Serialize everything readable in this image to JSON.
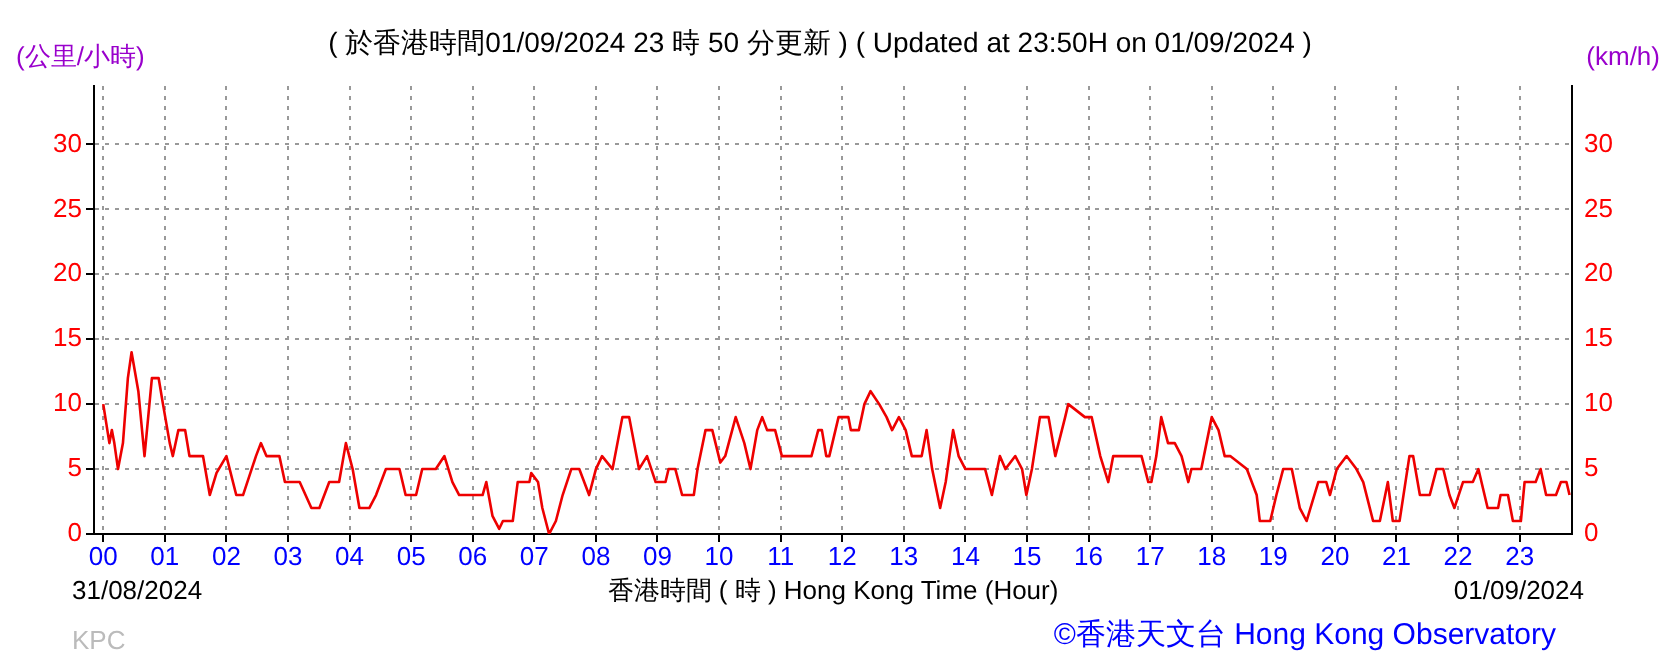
{
  "chart_data": {
    "type": "line",
    "title": "( 於香港時間01/09/2024 23 時 50 分更新 ) ( Updated at 23:50H on 01/09/2024 )",
    "ylabel": "(公里/小時)",
    "y2label": "(km/h)",
    "xlabel": "香港時間 ( 時 ) Hong Kong Time (Hour)",
    "annotations": [
      "31/08/2024",
      "01/09/2024",
      "KPC",
      "©香港天文台 Hong Kong Observatory"
    ],
    "series": [
      {
        "color": "#ee0000",
        "x": [
          0,
          0.05,
          0.1,
          0.14,
          0.18,
          0.24,
          0.32,
          0.4,
          0.46,
          0.57,
          0.67,
          0.79,
          0.9,
          0.97,
          1.08,
          1.13,
          1.22,
          1.33,
          1.4,
          1.62,
          1.73,
          1.84,
          2.0,
          2.16,
          2.27,
          2.48,
          2.56,
          2.65,
          2.86,
          2.95,
          3.19,
          3.38,
          3.51,
          3.67,
          3.83,
          3.94,
          4.05,
          4.16,
          4.32,
          4.43,
          4.59,
          4.81,
          4.91,
          5.08,
          5.18,
          5.4,
          5.54,
          5.67,
          5.78,
          6.16,
          6.22,
          6.32,
          6.43,
          6.49,
          6.65,
          6.73,
          6.92,
          6.95,
          7.06,
          7.13,
          7.24,
          7.35,
          7.46,
          7.6,
          7.73,
          7.89,
          8.0,
          8.1,
          8.27,
          8.43,
          8.54,
          8.7,
          8.83,
          8.97,
          9.13,
          9.18,
          9.29,
          9.4,
          9.59,
          9.65,
          9.78,
          9.89,
          10.02,
          10.1,
          10.27,
          10.41,
          10.51,
          10.62,
          10.7,
          10.78,
          10.91,
          11.02,
          11.5,
          11.61,
          11.67,
          11.74,
          11.79,
          11.94,
          12.1,
          12.14,
          12.27,
          12.36,
          12.46,
          12.6,
          12.72,
          12.81,
          12.92,
          13.03,
          13.13,
          13.29,
          13.37,
          13.46,
          13.59,
          13.68,
          13.8,
          13.89,
          14.0,
          14.32,
          14.43,
          14.56,
          14.65,
          14.81,
          14.92,
          14.99,
          15.08,
          15.21,
          15.35,
          15.46,
          15.62,
          15.67,
          15.94,
          16.05,
          16.19,
          16.32,
          16.4,
          16.86,
          16.97,
          17.02,
          17.1,
          17.18,
          17.29,
          17.4,
          17.51,
          17.62,
          17.67,
          17.83,
          18.0,
          18.11,
          18.21,
          18.3,
          18.57,
          18.73,
          18.78,
          18.95,
          19.05,
          19.16,
          19.3,
          19.43,
          19.54,
          19.73,
          19.86,
          19.92,
          20.03,
          20.19,
          20.35,
          20.46,
          20.62,
          20.73,
          20.86,
          20.94,
          21.05,
          21.21,
          21.27,
          21.38,
          21.54,
          21.65,
          21.76,
          21.86,
          21.94,
          22.08,
          22.24,
          22.33,
          22.48,
          22.65,
          22.69,
          22.81,
          22.89,
          23.02,
          23.08,
          23.26,
          23.34,
          23.43,
          23.59,
          23.67,
          23.76,
          23.81
        ],
        "values": [
          10,
          8.5,
          7,
          8,
          7,
          5,
          7,
          12,
          14,
          11,
          6,
          12,
          12,
          10,
          7,
          6,
          8,
          8,
          6,
          6,
          3,
          4.7,
          6,
          3,
          3,
          6,
          7,
          6,
          6,
          4,
          4,
          2,
          2,
          4,
          4,
          7,
          5,
          2,
          2,
          3,
          5,
          5,
          3,
          3,
          5,
          5,
          6,
          4,
          3,
          3,
          4,
          1.4,
          0.4,
          1,
          1,
          4,
          4,
          4.7,
          4,
          2,
          0,
          1,
          3,
          5,
          5,
          3,
          5,
          6,
          5,
          9,
          9,
          5,
          6,
          4,
          4,
          5,
          5,
          3,
          3,
          5,
          8,
          8,
          5.5,
          6,
          9,
          7,
          5,
          8,
          9,
          8,
          8,
          6,
          6,
          8,
          8,
          6,
          6,
          9,
          9,
          8,
          8,
          10,
          11,
          10,
          9,
          8,
          9,
          8,
          6,
          6,
          8,
          5,
          2,
          4,
          8,
          6,
          5,
          5,
          3,
          6,
          5,
          6,
          5,
          3,
          5,
          9,
          9,
          6,
          9,
          10,
          9,
          9,
          6,
          4,
          6,
          6,
          4,
          4,
          6,
          9,
          7,
          7,
          6,
          4,
          5,
          5,
          9,
          8,
          6,
          6,
          5,
          3,
          1,
          1,
          3,
          5,
          5,
          2,
          1,
          4,
          4,
          3,
          5,
          6,
          5,
          4,
          1,
          1,
          4,
          1,
          1,
          6,
          6,
          3,
          3,
          5,
          5,
          3,
          2,
          4,
          4,
          5,
          2,
          2,
          3,
          3,
          1,
          1,
          4,
          4,
          5,
          3,
          3,
          4,
          4,
          3
        ]
      }
    ],
    "xlim": [
      -0.15,
      23.85
    ],
    "xticks": [
      {
        "value": 0,
        "label": "00"
      },
      {
        "value": 1,
        "label": "01"
      },
      {
        "value": 2,
        "label": "02"
      },
      {
        "value": 3,
        "label": "03"
      },
      {
        "value": 4,
        "label": "04"
      },
      {
        "value": 5,
        "label": "05"
      },
      {
        "value": 6,
        "label": "06"
      },
      {
        "value": 7,
        "label": "07"
      },
      {
        "value": 8,
        "label": "08"
      },
      {
        "value": 9,
        "label": "09"
      },
      10,
      11,
      12,
      13,
      14,
      15,
      16,
      17,
      18,
      19,
      20,
      21,
      22,
      23
    ],
    "ylim": [
      0,
      34.5
    ],
    "yticks": [
      0,
      5,
      10,
      15,
      20,
      25,
      30
    ],
    "y2lim": [
      0,
      34.5
    ],
    "y2ticks": [
      0,
      5,
      10,
      15,
      20,
      25,
      30
    ],
    "grid": true,
    "legend": false,
    "marker": "none",
    "line_style": "solid"
  }
}
